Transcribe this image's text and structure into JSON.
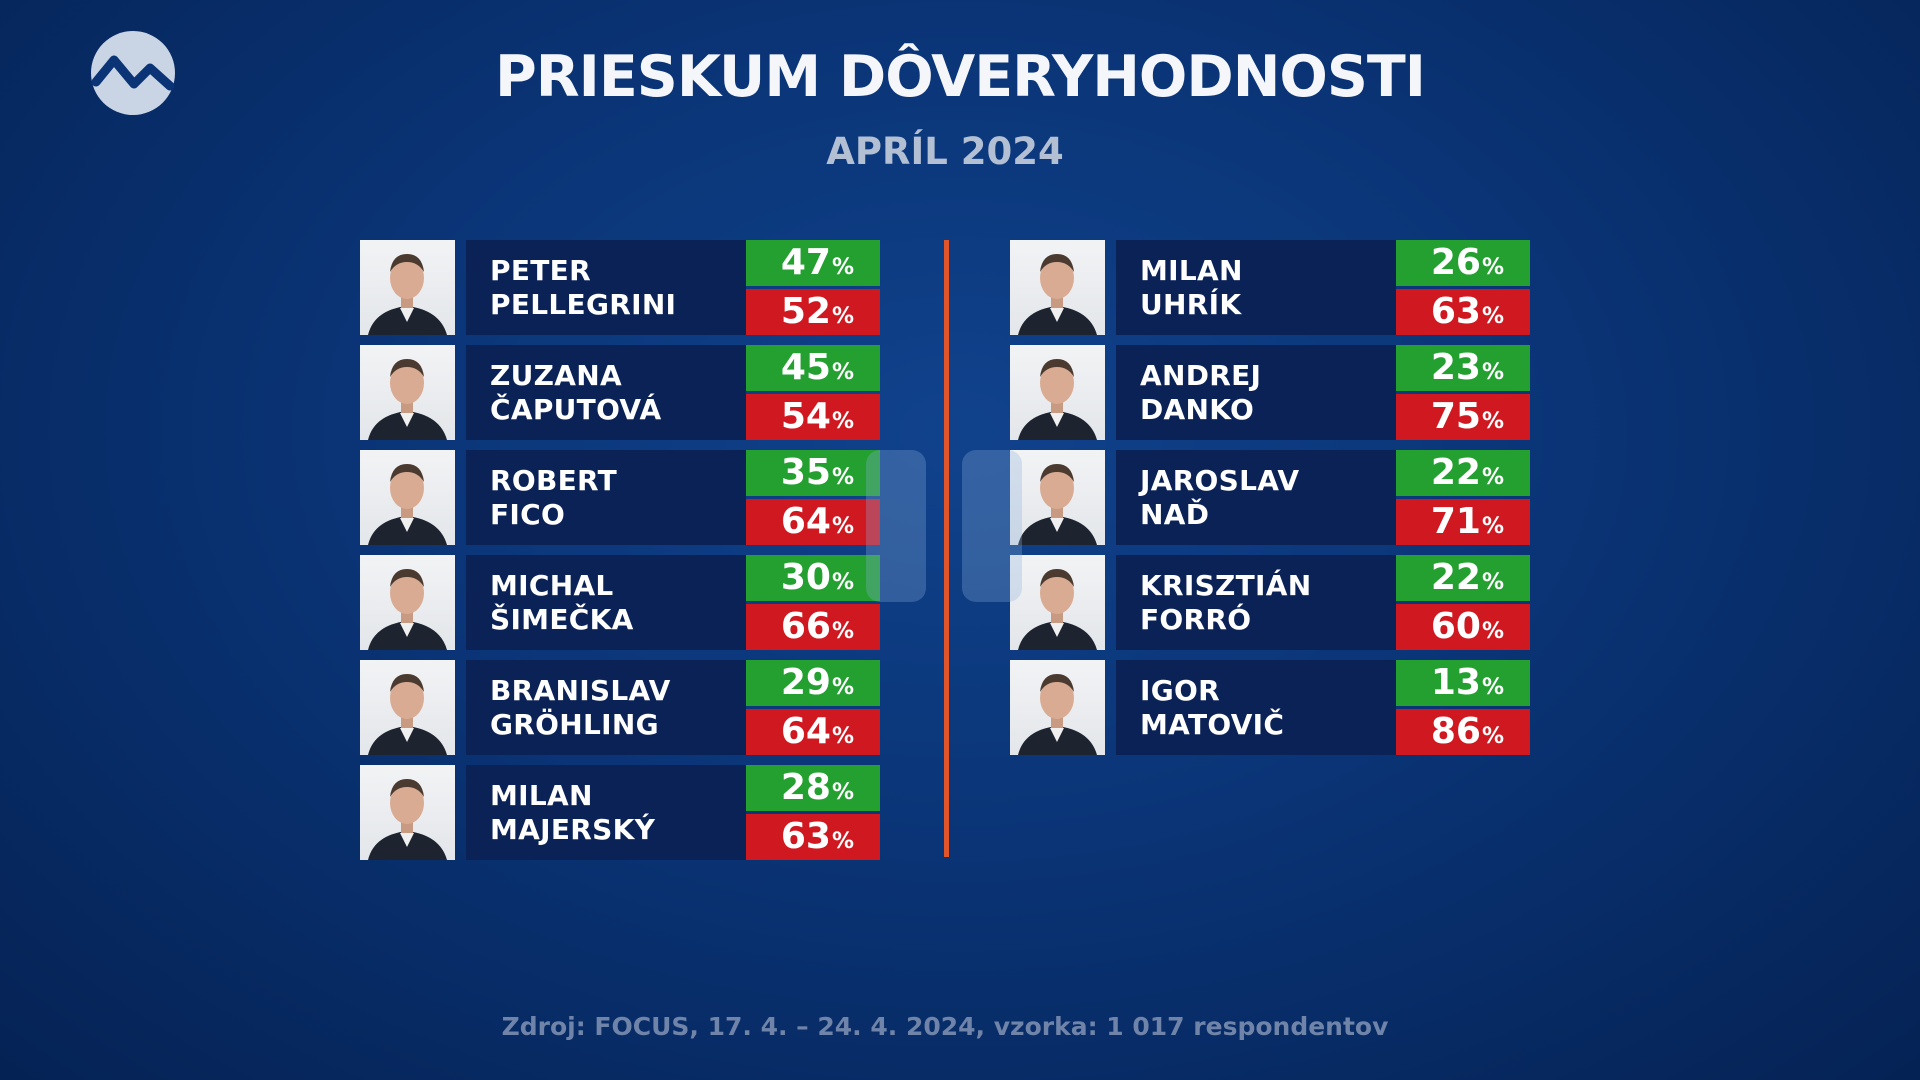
{
  "header": {
    "title": "PRIESKUM DÔVERYHODNOSTI",
    "subtitle": "APRÍL 2024"
  },
  "logo_icon": "broadcaster-logo-mountain-icon",
  "colors": {
    "background": "#0a3476",
    "name_panel": "#0b2257",
    "trust": "#23a030",
    "distrust": "#d01821",
    "divider": "#e2542a"
  },
  "chart_data": {
    "type": "table",
    "title": "PRIESKUM DÔVERYHODNOSTI",
    "subtitle": "APRÍL 2024",
    "unit": "%",
    "columns": [
      "trust",
      "distrust"
    ],
    "left": [
      {
        "first": "PETER",
        "last": "PELLEGRINI",
        "trust": "47",
        "distrust": "52"
      },
      {
        "first": "ZUZANA",
        "last": "ČAPUTOVÁ",
        "trust": "45",
        "distrust": "54"
      },
      {
        "first": "ROBERT",
        "last": "FICO",
        "trust": "35",
        "distrust": "64"
      },
      {
        "first": "MICHAL",
        "last": "ŠIMEČKA",
        "trust": "30",
        "distrust": "66"
      },
      {
        "first": "BRANISLAV",
        "last": "GRÖHLING",
        "trust": "29",
        "distrust": "64"
      },
      {
        "first": "MILAN",
        "last": "MAJERSKÝ",
        "trust": "28",
        "distrust": "63"
      }
    ],
    "right": [
      {
        "first": "MILAN",
        "last": "UHRÍK",
        "trust": "26",
        "distrust": "63"
      },
      {
        "first": "ANDREJ",
        "last": "DANKO",
        "trust": "23",
        "distrust": "75"
      },
      {
        "first": "JAROSLAV",
        "last": "NAĎ",
        "trust": "22",
        "distrust": "71"
      },
      {
        "first": "KRISZTIÁN",
        "last": "FORRÓ",
        "trust": "22",
        "distrust": "60"
      },
      {
        "first": "IGOR",
        "last": "MATOVIČ",
        "trust": "13",
        "distrust": "86"
      }
    ]
  },
  "footer": {
    "source": "Zdroj: FOCUS, 17. 4. – 24. 4. 2024, vzorka: 1 017 respondentov"
  }
}
